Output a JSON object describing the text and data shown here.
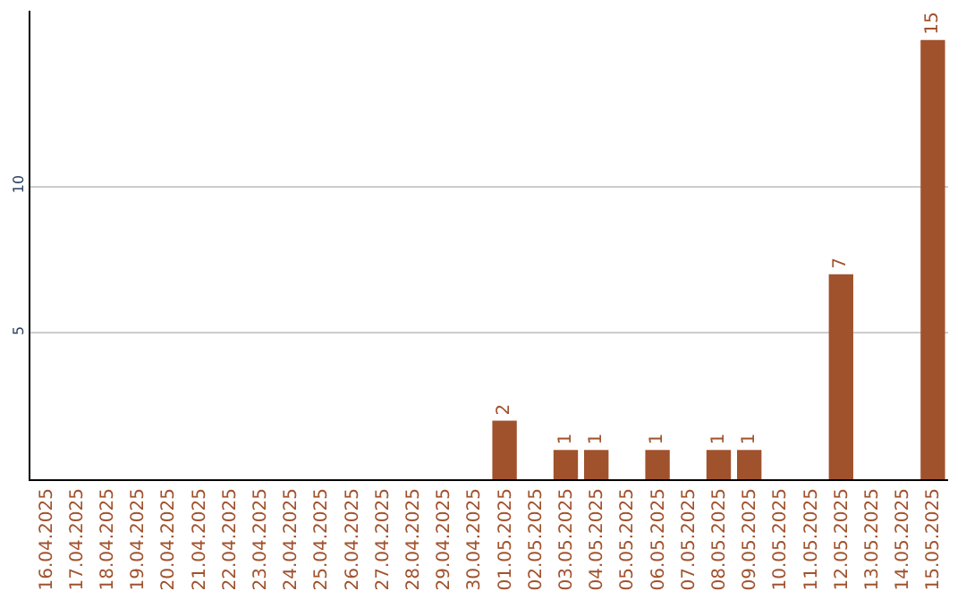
{
  "chart_data": {
    "type": "bar",
    "categories": [
      "16.04.2025",
      "17.04.2025",
      "18.04.2025",
      "19.04.2025",
      "20.04.2025",
      "21.04.2025",
      "22.04.2025",
      "23.04.2025",
      "24.04.2025",
      "25.04.2025",
      "26.04.2025",
      "27.04.2025",
      "28.04.2025",
      "29.04.2025",
      "30.04.2025",
      "01.05.2025",
      "02.05.2025",
      "03.05.2025",
      "04.05.2025",
      "05.05.2025",
      "06.05.2025",
      "07.05.2025",
      "08.05.2025",
      "09.05.2025",
      "10.05.2025",
      "11.05.2025",
      "12.05.2025",
      "13.05.2025",
      "14.05.2025",
      "15.05.2025"
    ],
    "values": [
      0,
      0,
      0,
      0,
      0,
      0,
      0,
      0,
      0,
      0,
      0,
      0,
      0,
      0,
      0,
      2,
      0,
      1,
      1,
      0,
      1,
      0,
      1,
      1,
      0,
      0,
      7,
      0,
      0,
      15
    ],
    "value_labels": [
      null,
      null,
      null,
      null,
      null,
      null,
      null,
      null,
      null,
      null,
      null,
      null,
      null,
      null,
      null,
      "2",
      null,
      "1",
      "1",
      null,
      "1",
      null,
      "1",
      "1",
      null,
      null,
      "7",
      null,
      null,
      "15"
    ],
    "color": "#a0522d",
    "ylim": [
      0,
      16
    ],
    "yticks": [
      5,
      10
    ],
    "grid": "y",
    "legend": false
  }
}
